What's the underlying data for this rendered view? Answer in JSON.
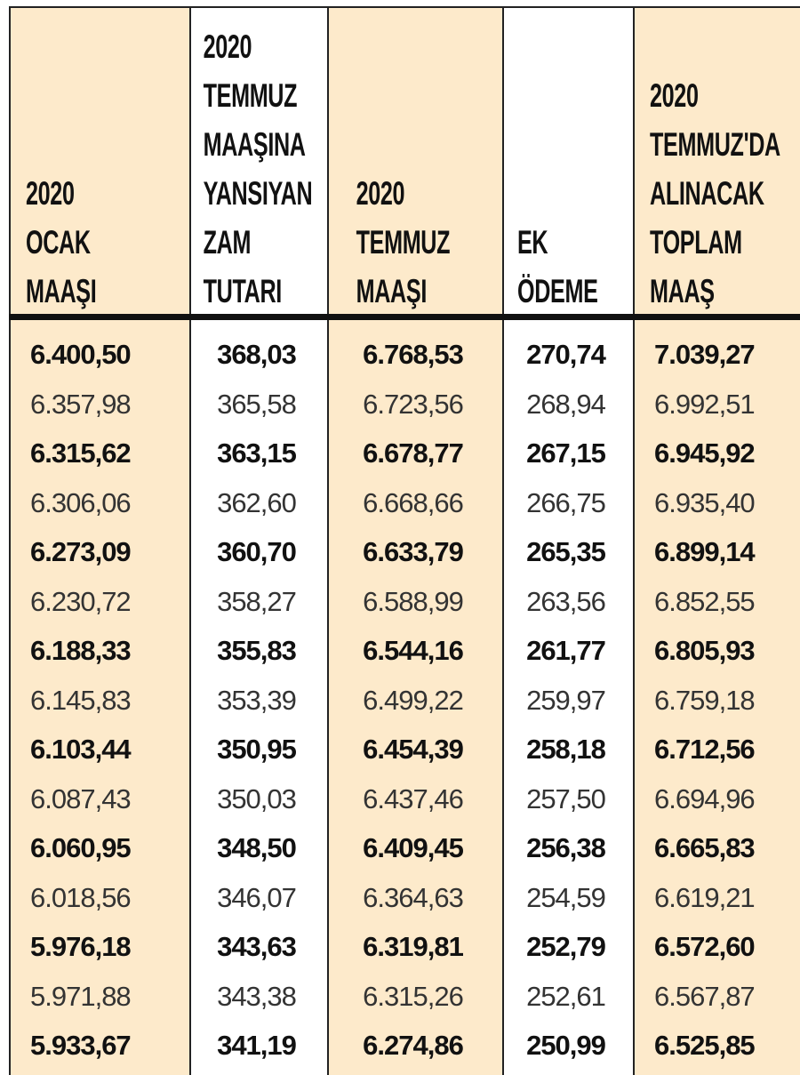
{
  "columns": [
    {
      "header": [
        "2020",
        "OCAK",
        "MAAŞI"
      ]
    },
    {
      "header": [
        "2020",
        "TEMMUZ",
        "MAAŞINA",
        "YANSIYAN",
        "ZAM",
        "TUTARI"
      ]
    },
    {
      "header": [
        "2020",
        "TEMMUZ",
        "MAAŞI"
      ]
    },
    {
      "header": [
        "EK",
        "ÖDEME"
      ]
    },
    {
      "header": [
        "2020",
        "TEMMUZ'DA",
        "ALINACAK",
        "TOPLAM",
        "MAAŞ"
      ]
    }
  ],
  "rows": [
    [
      "6.400,50",
      "368,03",
      "6.768,53",
      "270,74",
      "7.039,27"
    ],
    [
      "6.357,98",
      "365,58",
      "6.723,56",
      "268,94",
      "6.992,51"
    ],
    [
      "6.315,62",
      "363,15",
      "6.678,77",
      "267,15",
      "6.945,92"
    ],
    [
      "6.306,06",
      "362,60",
      "6.668,66",
      "266,75",
      "6.935,40"
    ],
    [
      "6.273,09",
      "360,70",
      "6.633,79",
      "265,35",
      "6.899,14"
    ],
    [
      "6.230,72",
      "358,27",
      "6.588,99",
      "263,56",
      "6.852,55"
    ],
    [
      "6.188,33",
      "355,83",
      "6.544,16",
      "261,77",
      "6.805,93"
    ],
    [
      "6.145,83",
      "353,39",
      "6.499,22",
      "259,97",
      "6.759,18"
    ],
    [
      "6.103,44",
      "350,95",
      "6.454,39",
      "258,18",
      "6.712,56"
    ],
    [
      "6.087,43",
      "350,03",
      "6.437,46",
      "257,50",
      "6.694,96"
    ],
    [
      "6.060,95",
      "348,50",
      "6.409,45",
      "256,38",
      "6.665,83"
    ],
    [
      "6.018,56",
      "346,07",
      "6.364,63",
      "254,59",
      "6.619,21"
    ],
    [
      "5.976,18",
      "343,63",
      "6.319,81",
      "252,79",
      "6.572,60"
    ],
    [
      "5.971,88",
      "343,38",
      "6.315,26",
      "252,61",
      "6.567,87"
    ],
    [
      "5.933,67",
      "341,19",
      "6.274,86",
      "250,99",
      "6.525,85"
    ]
  ],
  "colors": {
    "beige": "#fdeacb",
    "white": "#ffffff",
    "rule": "#111111"
  }
}
